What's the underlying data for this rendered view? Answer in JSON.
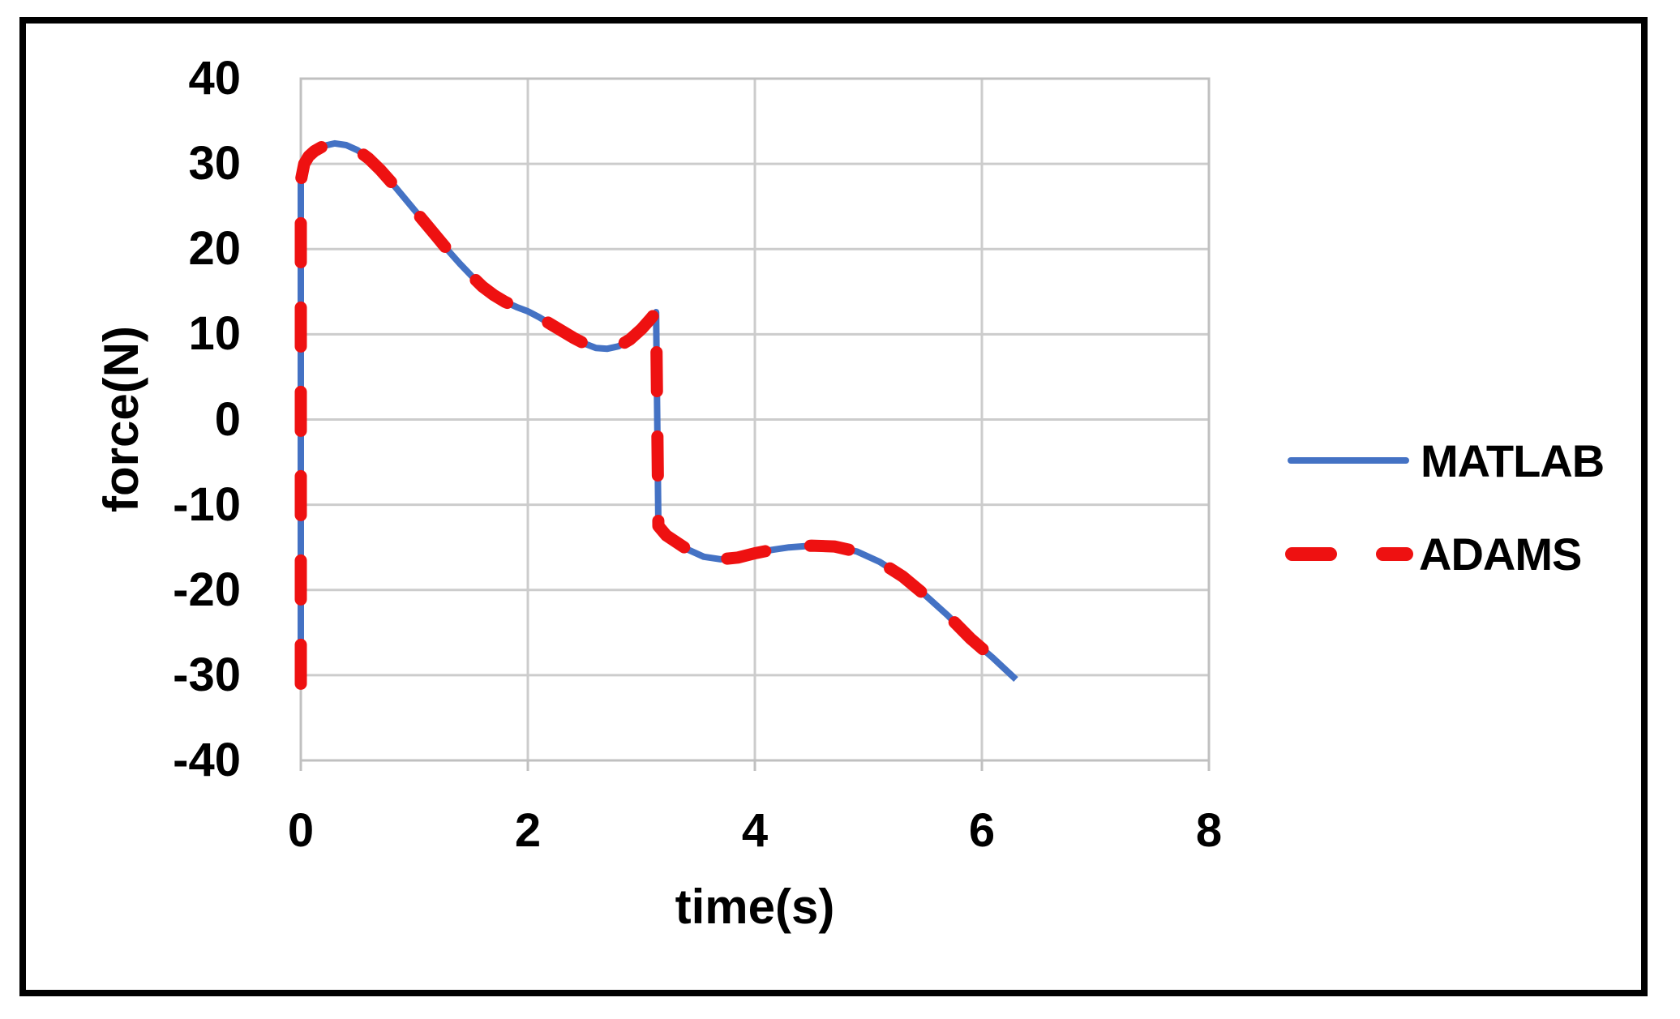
{
  "figure": {
    "background": "#ffffff",
    "frame_color": "#000000"
  },
  "chart_data": {
    "type": "line",
    "title": "",
    "xlabel": "time(s)",
    "ylabel": "force(N)",
    "xlim": [
      0,
      8
    ],
    "ylim": [
      -40,
      40
    ],
    "xticks": [
      0,
      2,
      4,
      6,
      8
    ],
    "yticks": [
      40,
      30,
      20,
      10,
      0,
      -10,
      -20,
      -30,
      -40
    ],
    "grid": true,
    "gridline_color": "#cccccc",
    "plot_border_color": "#c0c0c0",
    "text_color": "#000000",
    "legend_position": "right-outside",
    "legend_entries": [
      "MATLAB",
      "ADAMS"
    ],
    "series": [
      {
        "name": "MATLAB",
        "color": "#4472c4",
        "line_style": "solid",
        "line_width": 8,
        "points": [
          [
            0,
            -31
          ],
          [
            0,
            28
          ],
          [
            0.03,
            30
          ],
          [
            0.07,
            30.9
          ],
          [
            0.12,
            31.5
          ],
          [
            0.2,
            32.1
          ],
          [
            0.3,
            32.4
          ],
          [
            0.4,
            32.2
          ],
          [
            0.5,
            31.6
          ],
          [
            0.6,
            30.6
          ],
          [
            0.7,
            29.3
          ],
          [
            0.8,
            27.8
          ],
          [
            0.9,
            26.2
          ],
          [
            1.0,
            24.6
          ],
          [
            1.1,
            23.0
          ],
          [
            1.2,
            21.4
          ],
          [
            1.3,
            19.8
          ],
          [
            1.4,
            18.3
          ],
          [
            1.5,
            16.9
          ],
          [
            1.6,
            15.6
          ],
          [
            1.7,
            14.6
          ],
          [
            1.8,
            13.8
          ],
          [
            1.9,
            13.2
          ],
          [
            2.0,
            12.7
          ],
          [
            2.1,
            12.0
          ],
          [
            2.2,
            11.2
          ],
          [
            2.3,
            10.4
          ],
          [
            2.4,
            9.6
          ],
          [
            2.5,
            8.9
          ],
          [
            2.6,
            8.4
          ],
          [
            2.7,
            8.3
          ],
          [
            2.8,
            8.6
          ],
          [
            2.9,
            9.4
          ],
          [
            3.0,
            10.6
          ],
          [
            3.08,
            11.8
          ],
          [
            3.13,
            12.6
          ],
          [
            3.15,
            -12.5
          ],
          [
            3.22,
            -13.6
          ],
          [
            3.4,
            -15.2
          ],
          [
            3.55,
            -16.1
          ],
          [
            3.7,
            -16.4
          ],
          [
            3.85,
            -16.2
          ],
          [
            4.0,
            -15.7
          ],
          [
            4.15,
            -15.3
          ],
          [
            4.3,
            -15.0
          ],
          [
            4.5,
            -14.8
          ],
          [
            4.7,
            -14.9
          ],
          [
            4.9,
            -15.5
          ],
          [
            5.1,
            -16.7
          ],
          [
            5.3,
            -18.4
          ],
          [
            5.5,
            -20.6
          ],
          [
            5.7,
            -23.0
          ],
          [
            5.9,
            -25.7
          ],
          [
            6.1,
            -28.0
          ],
          [
            6.3,
            -30.5
          ]
        ]
      },
      {
        "name": "ADAMS",
        "color": "#ee1111",
        "line_style": "dashed",
        "line_width": 15,
        "points": [
          [
            0,
            -31
          ],
          [
            0,
            28
          ],
          [
            0.03,
            30
          ],
          [
            0.07,
            30.9
          ],
          [
            0.12,
            31.5
          ],
          [
            0.2,
            32.1
          ],
          [
            0.3,
            32.4
          ],
          [
            0.4,
            32.2
          ],
          [
            0.5,
            31.6
          ],
          [
            0.6,
            30.6
          ],
          [
            0.7,
            29.3
          ],
          [
            0.8,
            27.8
          ],
          [
            0.9,
            26.2
          ],
          [
            1.0,
            24.6
          ],
          [
            1.1,
            23.0
          ],
          [
            1.2,
            21.4
          ],
          [
            1.3,
            19.8
          ],
          [
            1.4,
            18.3
          ],
          [
            1.5,
            16.9
          ],
          [
            1.6,
            15.6
          ],
          [
            1.7,
            14.6
          ],
          [
            1.8,
            13.8
          ],
          [
            1.9,
            13.2
          ],
          [
            2.0,
            12.7
          ],
          [
            2.1,
            12.0
          ],
          [
            2.2,
            11.2
          ],
          [
            2.3,
            10.4
          ],
          [
            2.4,
            9.6
          ],
          [
            2.5,
            8.9
          ],
          [
            2.6,
            8.4
          ],
          [
            2.7,
            8.3
          ],
          [
            2.8,
            8.6
          ],
          [
            2.9,
            9.4
          ],
          [
            3.0,
            10.6
          ],
          [
            3.08,
            11.8
          ],
          [
            3.13,
            12.6
          ],
          [
            3.15,
            -12.5
          ],
          [
            3.22,
            -13.6
          ],
          [
            3.4,
            -15.2
          ],
          [
            3.55,
            -16.1
          ],
          [
            3.7,
            -16.4
          ],
          [
            3.85,
            -16.2
          ],
          [
            4.0,
            -15.7
          ],
          [
            4.15,
            -15.3
          ],
          [
            4.3,
            -15.0
          ],
          [
            4.5,
            -14.8
          ],
          [
            4.7,
            -14.9
          ],
          [
            4.9,
            -15.5
          ],
          [
            5.1,
            -16.7
          ],
          [
            5.3,
            -18.4
          ],
          [
            5.5,
            -20.6
          ],
          [
            5.7,
            -23.0
          ],
          [
            5.9,
            -25.7
          ],
          [
            6.1,
            -28.0
          ],
          [
            6.3,
            -30.5
          ]
        ]
      }
    ]
  }
}
